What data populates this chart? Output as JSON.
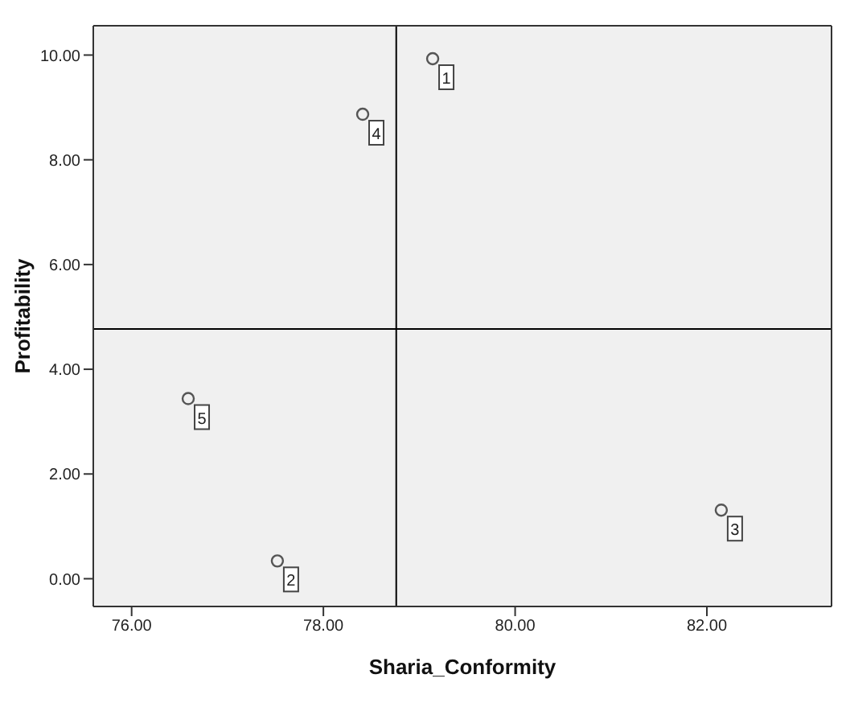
{
  "chart_data": {
    "type": "scatter",
    "xlabel": "Sharia_Conformity",
    "ylabel": "Profitability",
    "x": [
      79.14,
      77.52,
      82.15,
      78.41,
      76.59
    ],
    "series": [
      {
        "color": "#555555",
        "values": [
          9.93,
          0.34,
          1.31,
          8.87,
          3.44
        ]
      }
    ],
    "xlim": [
      75.6,
      83.3
    ],
    "xticks": [
      {
        "value": 76,
        "label": "76.00"
      },
      {
        "value": 78,
        "label": "78.00"
      },
      {
        "value": 80,
        "label": "80.00"
      },
      {
        "value": 82,
        "label": "82.00"
      }
    ],
    "ylim": [
      -0.53,
      10.56
    ],
    "yticks": [
      {
        "value": 0,
        "label": "0.00"
      },
      {
        "value": 2,
        "label": "2.00"
      },
      {
        "value": 4,
        "label": "4.00"
      },
      {
        "value": 6,
        "label": "6.00"
      },
      {
        "value": 8,
        "label": "8.00"
      },
      {
        "value": 10,
        "label": "10.00"
      }
    ],
    "ref_lines": [
      {
        "axis": "x",
        "value": 78.76,
        "color": "#000000"
      },
      {
        "axis": "y",
        "value": 4.77,
        "color": "#000000"
      }
    ],
    "annotations": [
      {
        "text": "1",
        "x": 79.14,
        "y": 9.93
      },
      {
        "text": "2",
        "x": 77.52,
        "y": 0.34
      },
      {
        "text": "3",
        "x": 82.15,
        "y": 1.31
      },
      {
        "text": "4",
        "x": 78.41,
        "y": 8.87
      },
      {
        "text": "5",
        "x": 76.59,
        "y": 3.44
      }
    ],
    "marker": "circle",
    "grid": false
  }
}
